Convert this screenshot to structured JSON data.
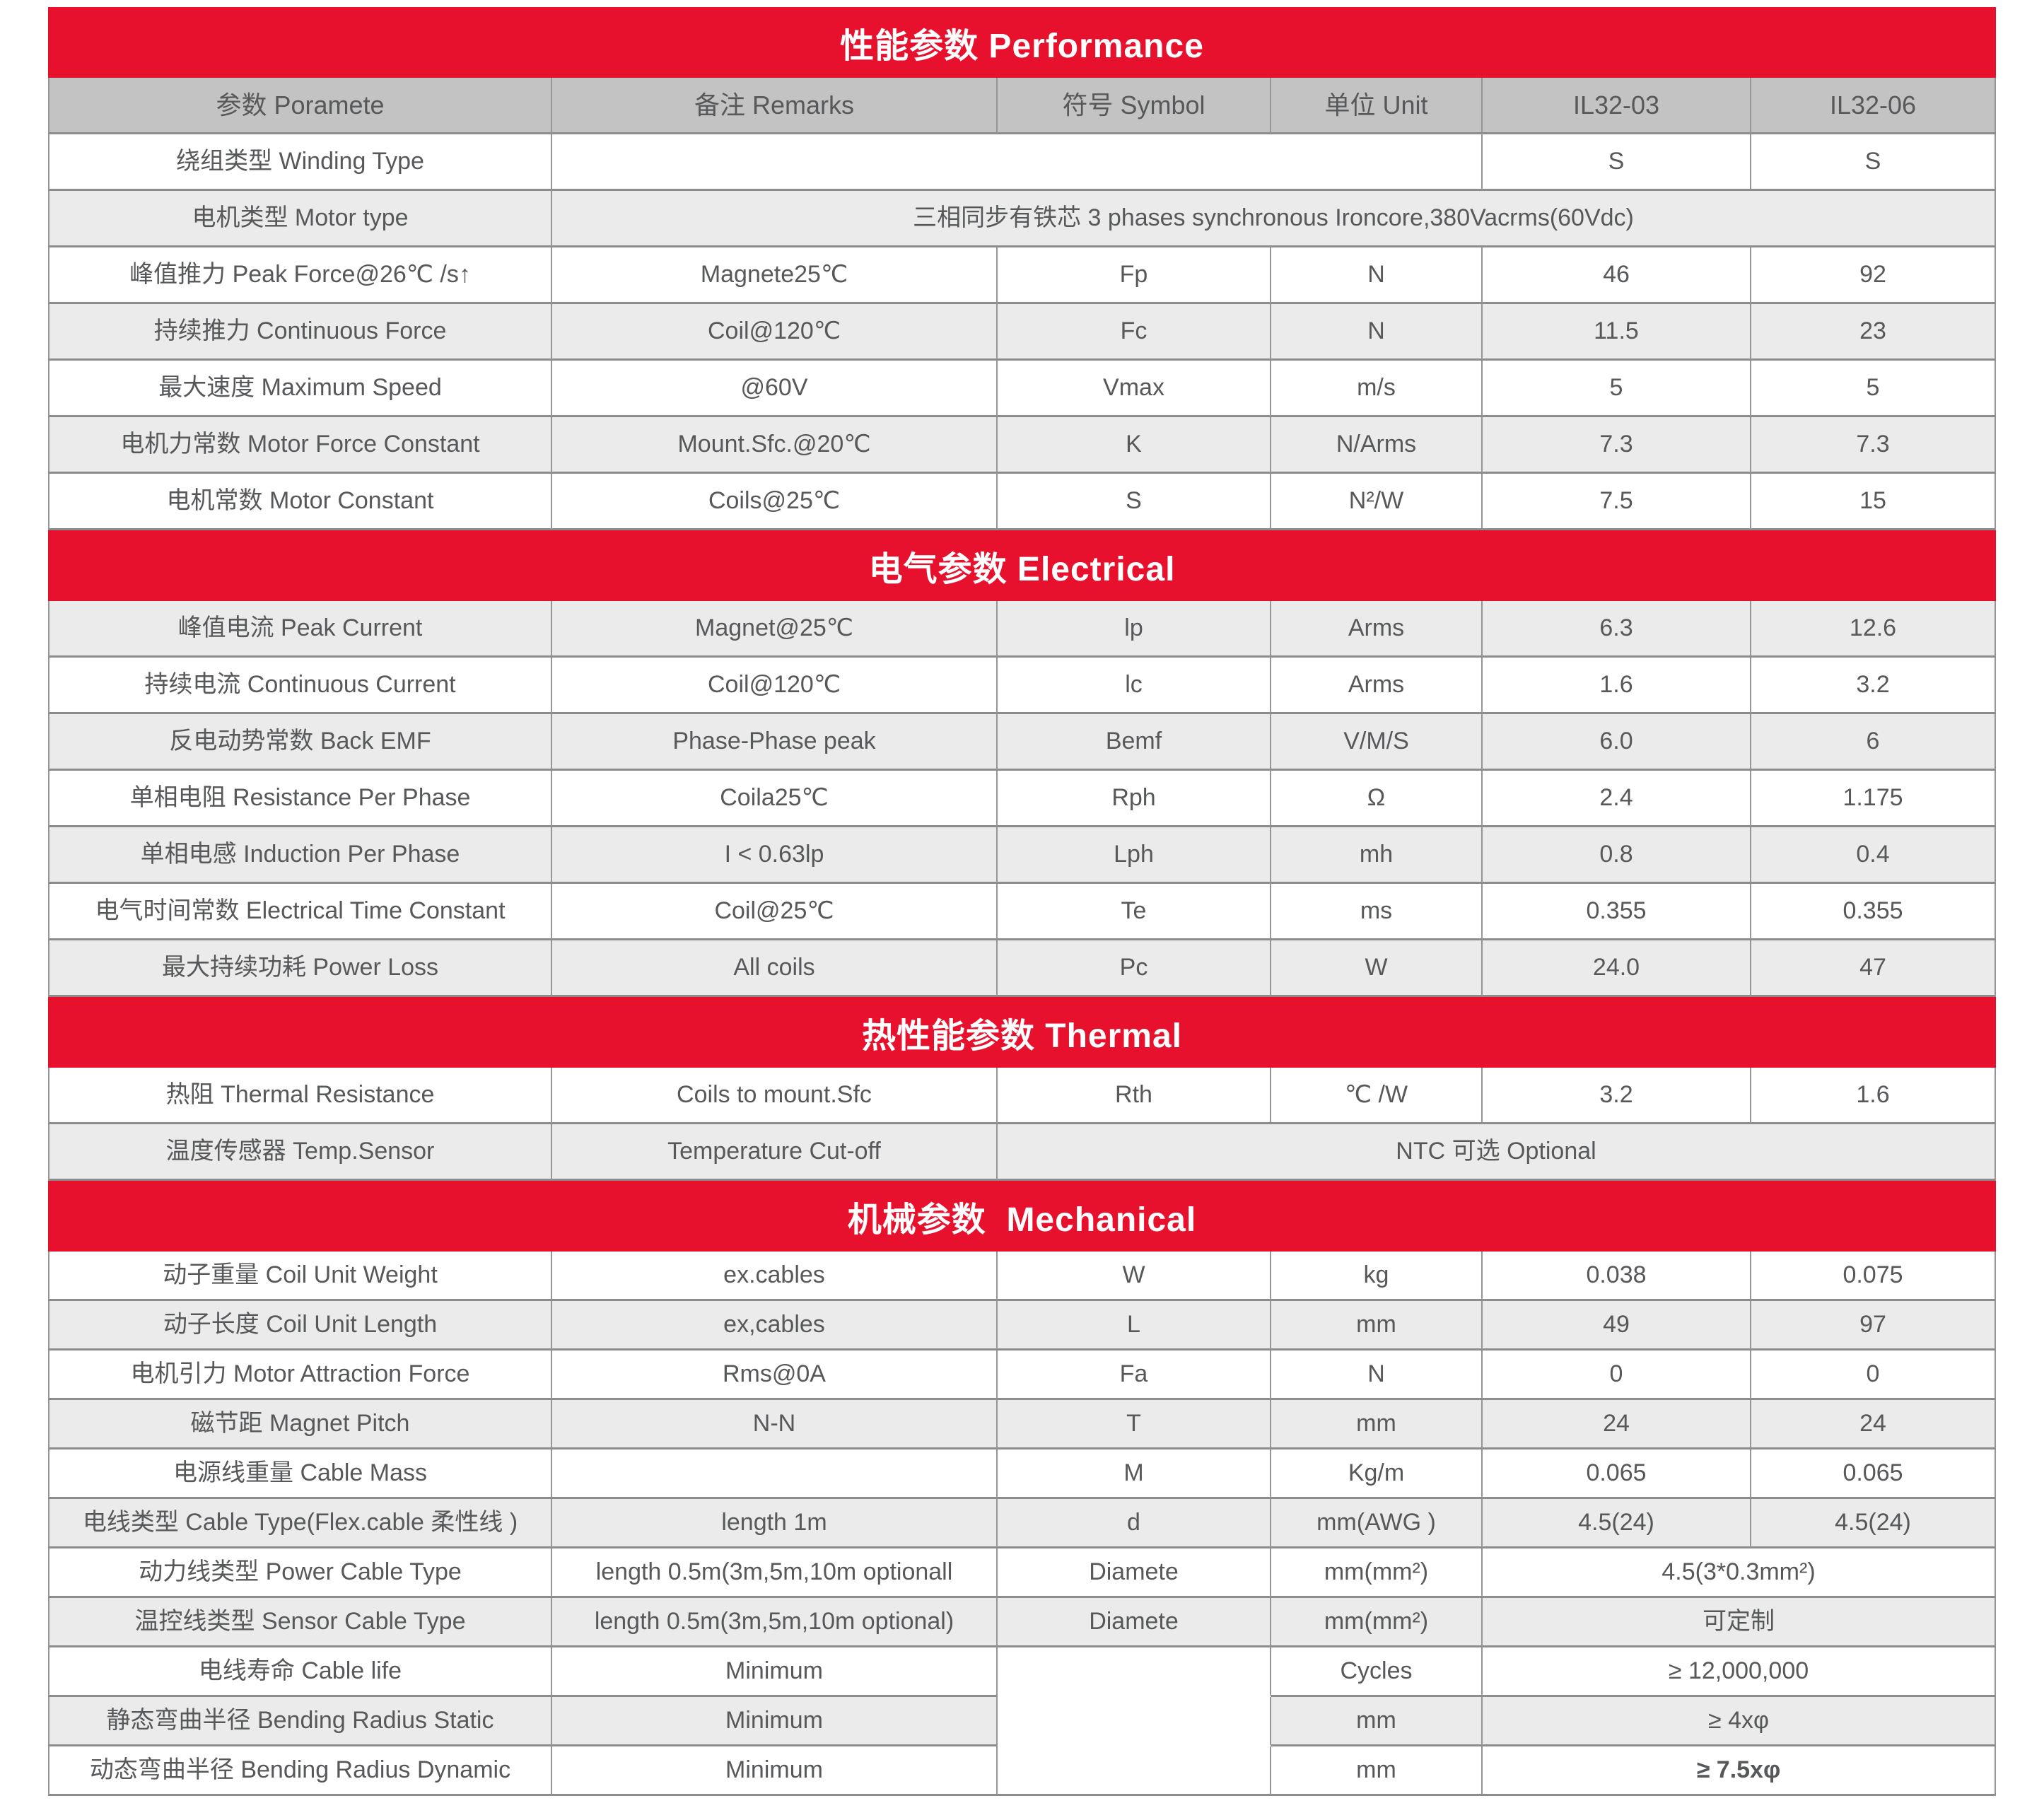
{
  "colors": {
    "accent_red": "#e8112d",
    "header_gray": "#c3c3c3",
    "row_gray": "#ebebeb",
    "row_white": "#ffffff",
    "border_vertical": "#969696",
    "border_horizontal": "#8c8c8c",
    "text": "#57585a",
    "title_text": "#ffffff"
  },
  "columns": {
    "headers": [
      "参数 Poramete",
      "备注 Remarks",
      "符号 Symbol",
      "单位 Unit",
      "IL32-03",
      "IL32-06"
    ]
  },
  "sections": [
    {
      "key": "performance",
      "title": "性能参数 Performance",
      "show_column_header": true,
      "rows": [
        {
          "shade": "white",
          "cells": [
            {
              "c": 0,
              "t": "绕组类型 Winding Type"
            },
            {
              "c": 1,
              "span": 3,
              "t": ""
            },
            {
              "c": 4,
              "t": "S"
            },
            {
              "c": 5,
              "t": "S"
            }
          ]
        },
        {
          "shade": "gray",
          "cells": [
            {
              "c": 0,
              "t": "电机类型 Motor type"
            },
            {
              "c": 1,
              "span": 5,
              "t": "三相同步有铁芯 3 phases synchronous Ironcore,380Vacrms(60Vdc)"
            }
          ]
        },
        {
          "shade": "white",
          "cells": [
            {
              "c": 0,
              "t": "峰值推力 Peak Force@26℃ /s↑"
            },
            {
              "c": 1,
              "t": "Magnete25℃"
            },
            {
              "c": 2,
              "t": "Fp"
            },
            {
              "c": 3,
              "t": "N"
            },
            {
              "c": 4,
              "t": "46"
            },
            {
              "c": 5,
              "t": "92"
            }
          ]
        },
        {
          "shade": "gray",
          "cells": [
            {
              "c": 0,
              "t": "持续推力 Continuous Force"
            },
            {
              "c": 1,
              "t": "Coil@120℃"
            },
            {
              "c": 2,
              "t": "Fc"
            },
            {
              "c": 3,
              "t": "N"
            },
            {
              "c": 4,
              "t": "11.5"
            },
            {
              "c": 5,
              "t": "23"
            }
          ]
        },
        {
          "shade": "white",
          "cells": [
            {
              "c": 0,
              "t": "最大速度 Maximum Speed"
            },
            {
              "c": 1,
              "t": "@60V"
            },
            {
              "c": 2,
              "t": "Vmax"
            },
            {
              "c": 3,
              "t": "m/s"
            },
            {
              "c": 4,
              "t": "5"
            },
            {
              "c": 5,
              "t": "5"
            }
          ]
        },
        {
          "shade": "gray",
          "cells": [
            {
              "c": 0,
              "t": "电机力常数 Motor Force Constant"
            },
            {
              "c": 1,
              "t": "Mount.Sfc.@20℃"
            },
            {
              "c": 2,
              "t": "K"
            },
            {
              "c": 3,
              "t": "N/Arms"
            },
            {
              "c": 4,
              "t": "7.3"
            },
            {
              "c": 5,
              "t": "7.3"
            }
          ]
        },
        {
          "shade": "white",
          "cells": [
            {
              "c": 0,
              "t": "电机常数 Motor Constant"
            },
            {
              "c": 1,
              "t": "Coils@25℃"
            },
            {
              "c": 2,
              "t": "S"
            },
            {
              "c": 3,
              "t": "N²/W"
            },
            {
              "c": 4,
              "t": "7.5"
            },
            {
              "c": 5,
              "t": "15"
            }
          ]
        }
      ]
    },
    {
      "key": "electrical",
      "title": "电气参数 Electrical",
      "show_column_header": false,
      "rows": [
        {
          "shade": "gray",
          "cells": [
            {
              "c": 0,
              "t": "峰值电流 Peak Current"
            },
            {
              "c": 1,
              "t": "Magnet@25℃"
            },
            {
              "c": 2,
              "t": "lp"
            },
            {
              "c": 3,
              "t": "Arms"
            },
            {
              "c": 4,
              "t": "6.3"
            },
            {
              "c": 5,
              "t": "12.6"
            }
          ]
        },
        {
          "shade": "white",
          "cells": [
            {
              "c": 0,
              "t": "持续电流 Continuous Current"
            },
            {
              "c": 1,
              "t": "Coil@120℃"
            },
            {
              "c": 2,
              "t": "lc"
            },
            {
              "c": 3,
              "t": "Arms"
            },
            {
              "c": 4,
              "t": "1.6"
            },
            {
              "c": 5,
              "t": "3.2"
            }
          ]
        },
        {
          "shade": "gray",
          "cells": [
            {
              "c": 0,
              "t": "反电动势常数 Back EMF"
            },
            {
              "c": 1,
              "t": "Phase-Phase peak"
            },
            {
              "c": 2,
              "t": "Bemf"
            },
            {
              "c": 3,
              "t": "V/M/S"
            },
            {
              "c": 4,
              "t": "6.0"
            },
            {
              "c": 5,
              "t": "6"
            }
          ]
        },
        {
          "shade": "white",
          "cells": [
            {
              "c": 0,
              "t": "单相电阻 Resistance Per Phase"
            },
            {
              "c": 1,
              "t": "Coila25℃"
            },
            {
              "c": 2,
              "t": "Rph"
            },
            {
              "c": 3,
              "t": "Ω"
            },
            {
              "c": 4,
              "t": "2.4"
            },
            {
              "c": 5,
              "t": "1.175"
            }
          ]
        },
        {
          "shade": "gray",
          "cells": [
            {
              "c": 0,
              "t": "单相电感 Induction Per Phase"
            },
            {
              "c": 1,
              "t": "I < 0.63lp"
            },
            {
              "c": 2,
              "t": "Lph"
            },
            {
              "c": 3,
              "t": "mh"
            },
            {
              "c": 4,
              "t": "0.8"
            },
            {
              "c": 5,
              "t": "0.4"
            }
          ]
        },
        {
          "shade": "white",
          "cells": [
            {
              "c": 0,
              "t": "电气时间常数 Electrical Time Constant"
            },
            {
              "c": 1,
              "t": "Coil@25℃"
            },
            {
              "c": 2,
              "t": "Te"
            },
            {
              "c": 3,
              "t": "ms"
            },
            {
              "c": 4,
              "t": "0.355"
            },
            {
              "c": 5,
              "t": "0.355"
            }
          ]
        },
        {
          "shade": "gray",
          "cells": [
            {
              "c": 0,
              "t": "最大持续功耗 Power Loss"
            },
            {
              "c": 1,
              "t": "All coils"
            },
            {
              "c": 2,
              "t": "Pc"
            },
            {
              "c": 3,
              "t": "W"
            },
            {
              "c": 4,
              "t": "24.0"
            },
            {
              "c": 5,
              "t": "47"
            }
          ]
        }
      ]
    },
    {
      "key": "thermal",
      "title": "热性能参数 Thermal",
      "show_column_header": false,
      "rows": [
        {
          "shade": "white",
          "cells": [
            {
              "c": 0,
              "t": "热阻 Thermal Resistance"
            },
            {
              "c": 1,
              "t": "Coils to mount.Sfc"
            },
            {
              "c": 2,
              "t": "Rth"
            },
            {
              "c": 3,
              "t": "℃ /W"
            },
            {
              "c": 4,
              "t": "3.2"
            },
            {
              "c": 5,
              "t": "1.6"
            }
          ]
        },
        {
          "shade": "gray",
          "cells": [
            {
              "c": 0,
              "t": "温度传感器 Temp.Sensor"
            },
            {
              "c": 1,
              "t": "Temperature Cut-off"
            },
            {
              "c": 2,
              "span": 4,
              "t": "NTC 可选 Optional"
            }
          ]
        }
      ]
    },
    {
      "key": "mechanical",
      "title": "机械参数  Mechanical",
      "show_column_header": false,
      "rows": [
        {
          "shade": "white",
          "cells": [
            {
              "c": 0,
              "t": "动子重量 Coil Unit Weight"
            },
            {
              "c": 1,
              "t": "ex.cables"
            },
            {
              "c": 2,
              "t": "W"
            },
            {
              "c": 3,
              "t": "kg"
            },
            {
              "c": 4,
              "t": "0.038"
            },
            {
              "c": 5,
              "t": "0.075"
            }
          ]
        },
        {
          "shade": "gray",
          "cells": [
            {
              "c": 0,
              "t": "动子长度 Coil Unit Length"
            },
            {
              "c": 1,
              "t": "ex,cables"
            },
            {
              "c": 2,
              "t": "L"
            },
            {
              "c": 3,
              "t": "mm"
            },
            {
              "c": 4,
              "t": "49"
            },
            {
              "c": 5,
              "t": "97"
            }
          ]
        },
        {
          "shade": "white",
          "cells": [
            {
              "c": 0,
              "t": "电机引力 Motor Attraction Force"
            },
            {
              "c": 1,
              "t": "Rms@0A"
            },
            {
              "c": 2,
              "t": "Fa"
            },
            {
              "c": 3,
              "t": "N"
            },
            {
              "c": 4,
              "t": "0"
            },
            {
              "c": 5,
              "t": "0"
            }
          ]
        },
        {
          "shade": "gray",
          "cells": [
            {
              "c": 0,
              "t": "磁节距 Magnet Pitch"
            },
            {
              "c": 1,
              "t": "N-N"
            },
            {
              "c": 2,
              "t": "T"
            },
            {
              "c": 3,
              "t": "mm"
            },
            {
              "c": 4,
              "t": "24"
            },
            {
              "c": 5,
              "t": "24"
            }
          ]
        },
        {
          "shade": "white",
          "cells": [
            {
              "c": 0,
              "t": "电源线重量 Cable Mass"
            },
            {
              "c": 1,
              "t": ""
            },
            {
              "c": 2,
              "t": "M"
            },
            {
              "c": 3,
              "t": "Kg/m"
            },
            {
              "c": 4,
              "t": "0.065"
            },
            {
              "c": 5,
              "t": "0.065"
            }
          ]
        },
        {
          "shade": "gray",
          "cells": [
            {
              "c": 0,
              "t": "电线类型 Cable Type(Flex.cable 柔性线 )"
            },
            {
              "c": 1,
              "t": "length 1m"
            },
            {
              "c": 2,
              "t": "d"
            },
            {
              "c": 3,
              "t": "mm(AWG )"
            },
            {
              "c": 4,
              "t": "4.5(24)"
            },
            {
              "c": 5,
              "t": "4.5(24)"
            }
          ]
        },
        {
          "shade": "white",
          "cells": [
            {
              "c": 0,
              "t": "动力线类型 Power Cable Type"
            },
            {
              "c": 1,
              "t": "length 0.5m(3m,5m,10m optionall"
            },
            {
              "c": 2,
              "t": "Diamete"
            },
            {
              "c": 3,
              "t": "mm(mm²)"
            },
            {
              "c": 4,
              "span": 2,
              "t": "4.5(3*0.3mm²)"
            }
          ]
        },
        {
          "shade": "gray",
          "cells": [
            {
              "c": 0,
              "t": "温控线类型 Sensor Cable Type"
            },
            {
              "c": 1,
              "t": "length 0.5m(3m,5m,10m optional)"
            },
            {
              "c": 2,
              "t": "Diamete"
            },
            {
              "c": 3,
              "t": "mm(mm²)"
            },
            {
              "c": 4,
              "span": 2,
              "t": "可定制"
            }
          ]
        },
        {
          "shade": "white",
          "cells": [
            {
              "c": 0,
              "t": "电线寿命 Cable life"
            },
            {
              "c": 1,
              "t": "Minimum"
            },
            {
              "c": 2,
              "t": "",
              "vm": "start"
            },
            {
              "c": 3,
              "t": "Cycles"
            },
            {
              "c": 4,
              "span": 2,
              "t": "≥ 12,000,000"
            }
          ]
        },
        {
          "shade": "gray",
          "cells": [
            {
              "c": 0,
              "t": "静态弯曲半径 Bending Radius Static"
            },
            {
              "c": 1,
              "t": "Minimum"
            },
            {
              "c": 2,
              "t": "",
              "vm": "mid"
            },
            {
              "c": 3,
              "t": "mm"
            },
            {
              "c": 4,
              "span": 2,
              "t": "≥ 4xφ"
            }
          ]
        },
        {
          "shade": "white",
          "cells": [
            {
              "c": 0,
              "t": "动态弯曲半径 Bending Radius Dynamic"
            },
            {
              "c": 1,
              "t": "Minimum"
            },
            {
              "c": 2,
              "t": "",
              "vm": "end"
            },
            {
              "c": 3,
              "t": "mm"
            },
            {
              "c": 4,
              "span": 2,
              "t": "≥ 7.5xφ",
              "bold": true
            }
          ]
        }
      ]
    }
  ]
}
